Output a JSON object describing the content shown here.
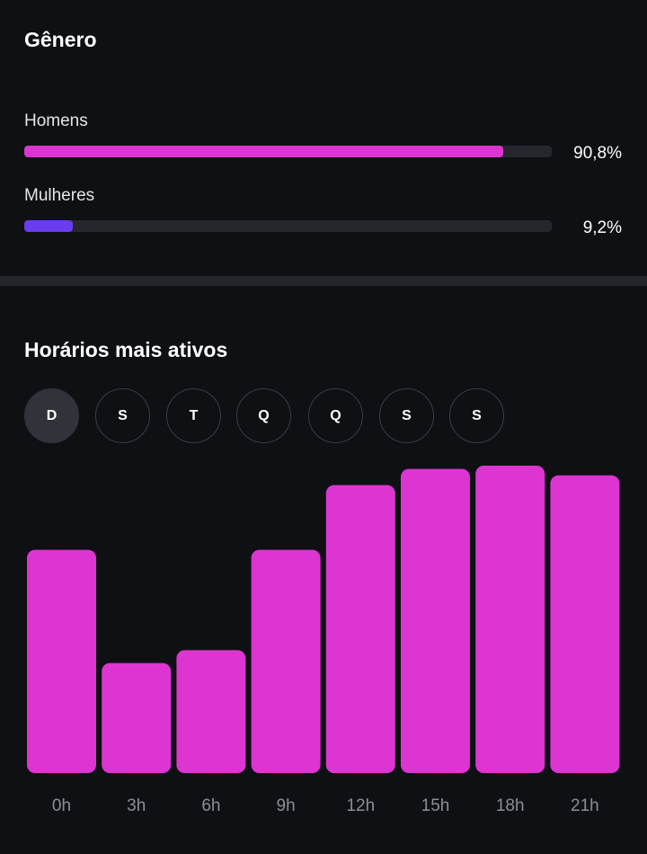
{
  "gender": {
    "title": "Gênero",
    "items": [
      {
        "label": "Homens",
        "percent_text": "90,8%",
        "fraction": 0.908,
        "color": "#dd35d1"
      },
      {
        "label": "Mulheres",
        "percent_text": "9,2%",
        "fraction": 0.092,
        "color": "#6a3cf0"
      }
    ]
  },
  "active_hours": {
    "title": "Horários mais ativos",
    "days": [
      "D",
      "S",
      "T",
      "Q",
      "Q",
      "S",
      "S"
    ],
    "selected_day_index": 0
  },
  "chart_data": {
    "type": "bar",
    "categories": [
      "0h",
      "3h",
      "6h",
      "9h",
      "12h",
      "15h",
      "18h",
      "21h"
    ],
    "values": [
      69,
      34,
      38,
      69,
      89,
      94,
      95,
      92
    ],
    "ylim": [
      0,
      100
    ],
    "grid": false,
    "bar_color": "#dd35d1"
  }
}
